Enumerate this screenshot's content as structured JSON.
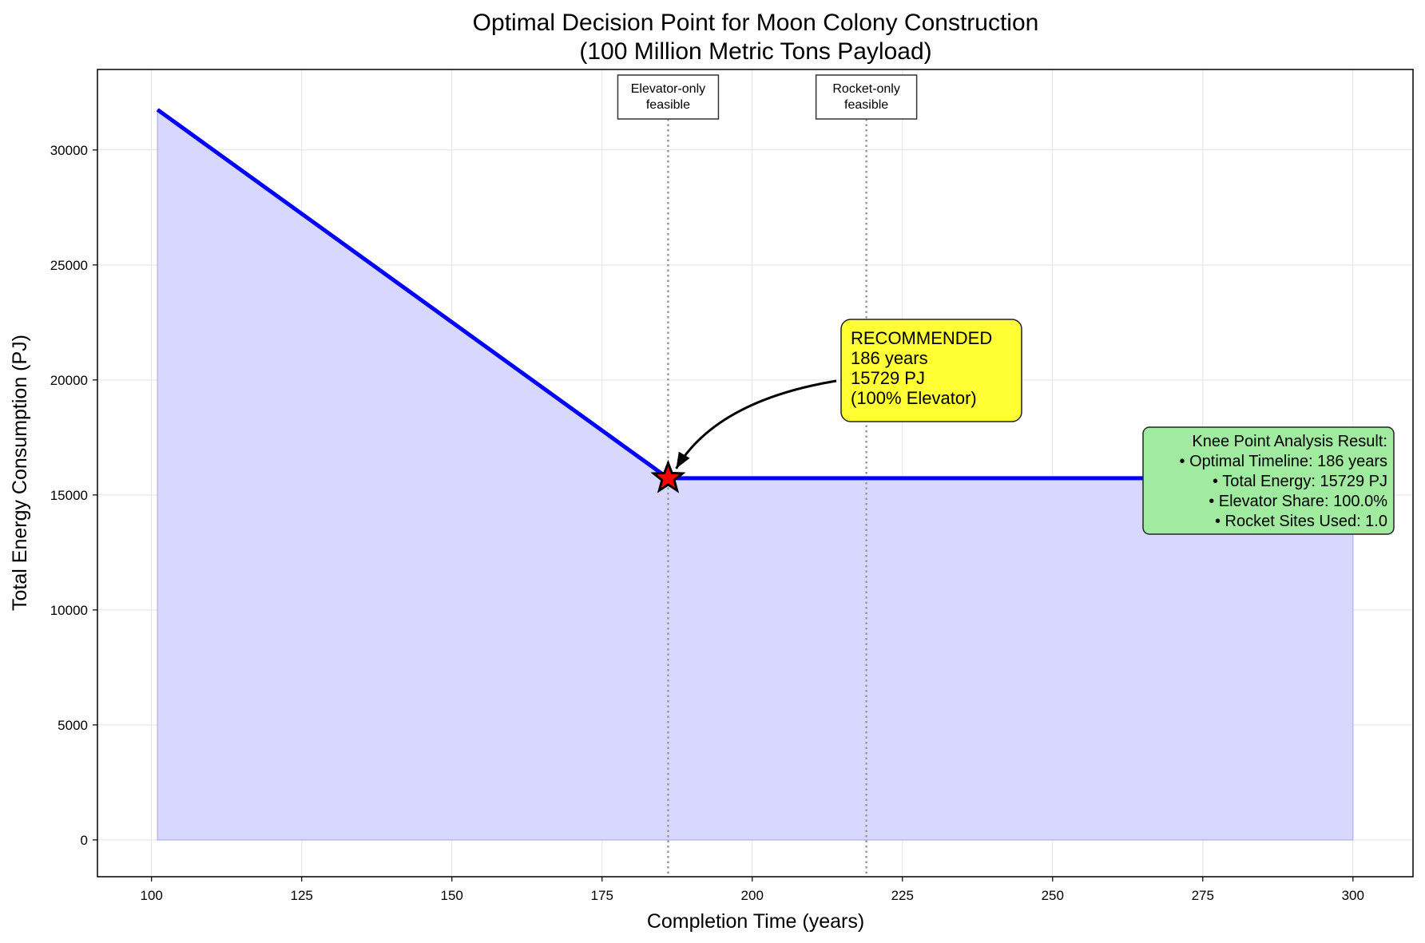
{
  "chart_data": {
    "type": "area",
    "title": "Optimal Decision Point for Moon Colony Construction",
    "subtitle": "(100 Million Metric Tons Payload)",
    "xlabel": "Completion Time (years)",
    "ylabel": "Total Energy Consumption (PJ)",
    "xlim": [
      91,
      310
    ],
    "ylim": [
      -1600,
      33500
    ],
    "xticks": [
      100,
      125,
      150,
      175,
      200,
      225,
      250,
      275,
      300
    ],
    "yticks": [
      0,
      5000,
      10000,
      15000,
      20000,
      25000,
      30000
    ],
    "grid": true,
    "series": [
      {
        "x": [
          101,
          186,
          300
        ],
        "y": [
          31750,
          15729,
          15729
        ],
        "color": "#0000ff",
        "fill_color": "#d8d8ff"
      }
    ],
    "vlines": [
      {
        "x": 186,
        "label_lines": [
          "Elevator-only",
          "feasible"
        ]
      },
      {
        "x": 219,
        "label_lines": [
          "Rocket-only",
          "feasible"
        ]
      }
    ],
    "optimal_point": {
      "x": 186,
      "y": 15729,
      "marker": "star",
      "color": "#ff0000"
    },
    "recommendation": {
      "lines": [
        "RECOMMENDED",
        "186 years",
        "15729 PJ",
        "(100% Elevator)"
      ],
      "box_color": "#ffff33"
    },
    "knee_summary": {
      "lines": [
        "Knee Point Analysis Result:",
        "• Optimal Timeline: 186 years",
        "• Total Energy: 15729 PJ",
        "• Elevator Share: 100.0%",
        "• Rocket Sites Used: 1.0"
      ],
      "box_color": "#a0eba0"
    }
  }
}
